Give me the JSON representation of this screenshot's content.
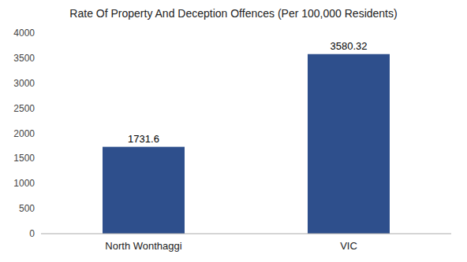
{
  "chart_data": {
    "type": "bar",
    "title": "Rate Of Property And Deception Offences (Per 100,000 Residents)",
    "categories": [
      "North Wonthaggi",
      "VIC"
    ],
    "values": [
      1731.6,
      3580.32
    ],
    "color": "#2e4f8c",
    "ylim": [
      0,
      4000
    ],
    "yticks": [
      0,
      500,
      1000,
      1500,
      2000,
      2500,
      3000,
      3500,
      4000
    ],
    "grid": false,
    "data_labels": true
  }
}
